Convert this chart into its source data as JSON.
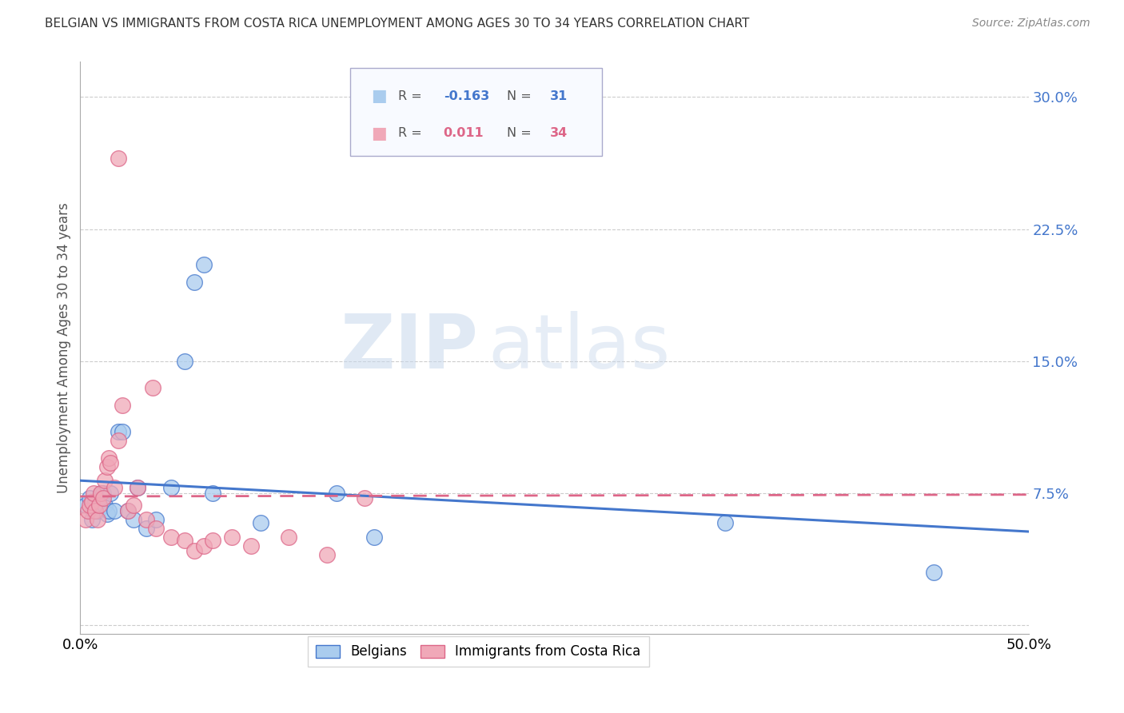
{
  "title": "BELGIAN VS IMMIGRANTS FROM COSTA RICA UNEMPLOYMENT AMONG AGES 30 TO 34 YEARS CORRELATION CHART",
  "source": "Source: ZipAtlas.com",
  "ylabel": "Unemployment Among Ages 30 to 34 years",
  "xlim": [
    0.0,
    0.5
  ],
  "ylim": [
    -0.005,
    0.32
  ],
  "yticks": [
    0.0,
    0.075,
    0.15,
    0.225,
    0.3
  ],
  "ytick_labels": [
    "",
    "7.5%",
    "15.0%",
    "22.5%",
    "30.0%"
  ],
  "xticks": [
    0.0,
    0.1,
    0.2,
    0.3,
    0.4,
    0.5
  ],
  "xtick_labels": [
    "0.0%",
    "",
    "",
    "",
    "",
    "50.0%"
  ],
  "blue_color": "#aaccee",
  "pink_color": "#f0a8b8",
  "blue_line_color": "#4477cc",
  "pink_line_color": "#dd6688",
  "blue_scatter_x": [
    0.003,
    0.005,
    0.006,
    0.007,
    0.008,
    0.009,
    0.01,
    0.011,
    0.012,
    0.013,
    0.014,
    0.015,
    0.016,
    0.018,
    0.02,
    0.022,
    0.025,
    0.028,
    0.03,
    0.035,
    0.04,
    0.048,
    0.055,
    0.06,
    0.065,
    0.07,
    0.095,
    0.135,
    0.155,
    0.34,
    0.45
  ],
  "blue_scatter_y": [
    0.068,
    0.072,
    0.06,
    0.065,
    0.07,
    0.065,
    0.068,
    0.075,
    0.075,
    0.068,
    0.063,
    0.065,
    0.075,
    0.065,
    0.11,
    0.11,
    0.065,
    0.06,
    0.078,
    0.055,
    0.06,
    0.078,
    0.15,
    0.195,
    0.205,
    0.075,
    0.058,
    0.075,
    0.05,
    0.058,
    0.03
  ],
  "pink_scatter_x": [
    0.003,
    0.004,
    0.005,
    0.006,
    0.007,
    0.008,
    0.009,
    0.01,
    0.011,
    0.012,
    0.013,
    0.014,
    0.015,
    0.016,
    0.018,
    0.02,
    0.022,
    0.025,
    0.028,
    0.03,
    0.035,
    0.038,
    0.04,
    0.048,
    0.055,
    0.06,
    0.065,
    0.07,
    0.08,
    0.09,
    0.11,
    0.13,
    0.15,
    0.02
  ],
  "pink_scatter_y": [
    0.06,
    0.065,
    0.068,
    0.07,
    0.075,
    0.065,
    0.06,
    0.068,
    0.075,
    0.072,
    0.082,
    0.09,
    0.095,
    0.092,
    0.078,
    0.105,
    0.125,
    0.065,
    0.068,
    0.078,
    0.06,
    0.135,
    0.055,
    0.05,
    0.048,
    0.042,
    0.045,
    0.048,
    0.05,
    0.045,
    0.05,
    0.04,
    0.072,
    0.265
  ],
  "blue_trend_x": [
    0.0,
    0.5
  ],
  "blue_trend_y": [
    0.082,
    0.053
  ],
  "pink_trend_x": [
    0.0,
    0.5
  ],
  "pink_trend_y": [
    0.073,
    0.074
  ],
  "grid_color": "#cccccc",
  "background_color": "#ffffff",
  "watermark_zip": "ZIP",
  "watermark_atlas": "atlas"
}
